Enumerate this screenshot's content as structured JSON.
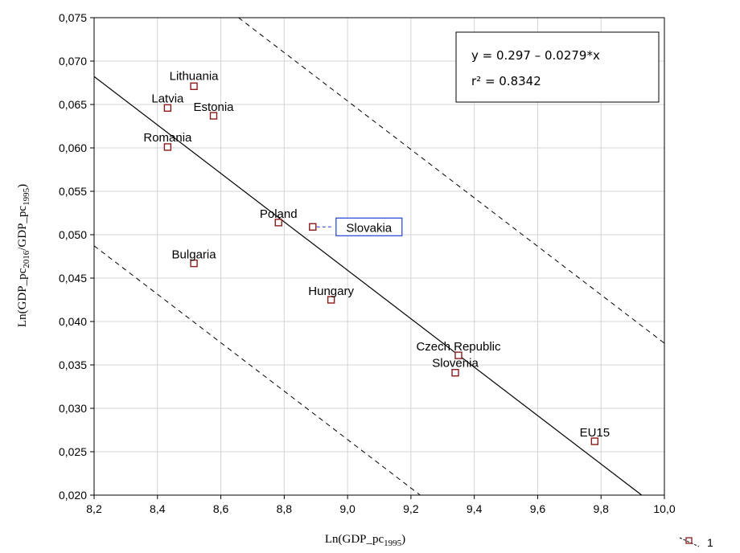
{
  "chart_data": {
    "type": "scatter",
    "xlabel": "Ln(GDP_pc1995)",
    "ylabel": "Ln(GDP_pc2016/GDP_pc1995)",
    "xlim": [
      8.2,
      10.0
    ],
    "ylim": [
      0.02,
      0.075
    ],
    "x_ticks": [
      "8,2",
      "8,4",
      "8,6",
      "8,8",
      "9,0",
      "9,2",
      "9,4",
      "9,6",
      "9,8",
      "10,0"
    ],
    "y_ticks": [
      "0,020",
      "0,025",
      "0,030",
      "0,035",
      "0,040",
      "0,045",
      "0,050",
      "0,055",
      "0,060",
      "0,065",
      "0,070",
      "0,075"
    ],
    "grid": true,
    "points": [
      {
        "label": "Lithuania",
        "x": 8.515,
        "y": 0.0671
      },
      {
        "label": "Latvia",
        "x": 8.432,
        "y": 0.0646
      },
      {
        "label": "Estonia",
        "x": 8.577,
        "y": 0.0637
      },
      {
        "label": "Romania",
        "x": 8.432,
        "y": 0.0601
      },
      {
        "label": "Poland",
        "x": 8.782,
        "y": 0.0514
      },
      {
        "label": "Slovakia",
        "x": 8.89,
        "y": 0.0509,
        "highlighted": true
      },
      {
        "label": "Bulgaria",
        "x": 8.515,
        "y": 0.0467
      },
      {
        "label": "Hungary",
        "x": 8.948,
        "y": 0.0425
      },
      {
        "label": "Czech Republic",
        "x": 9.35,
        "y": 0.0361
      },
      {
        "label": "Slovenia",
        "x": 9.34,
        "y": 0.0341
      },
      {
        "label": "EU15",
        "x": 9.78,
        "y": 0.0262
      }
    ],
    "regression": {
      "intercept": 0.297,
      "slope": -0.0279
    },
    "annotation_lines": [
      "y = 0.297 – 0.0279*x",
      "r² = 0.8342"
    ],
    "legend": [
      "1"
    ],
    "colors": {
      "marker": "#8b1a1a",
      "highlight_box": "#1f3fd6",
      "line": "#000000"
    }
  }
}
